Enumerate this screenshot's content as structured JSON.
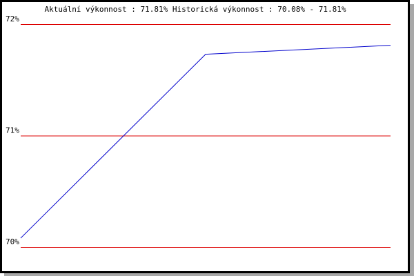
{
  "chart_data": {
    "type": "line",
    "title": "Aktuální výkonnost : 71.81%  Historická výkonnost : 70.08% - 71.81%",
    "xlabel": "",
    "ylabel": "",
    "ylim": [
      70,
      72
    ],
    "yticks": [
      70,
      71,
      72
    ],
    "ytick_labels": [
      "70%",
      "71%",
      "72%"
    ],
    "grid": true,
    "x": [
      0,
      1,
      2
    ],
    "series": [
      {
        "values": [
          70.08,
          71.73,
          71.81
        ]
      }
    ],
    "colors": {
      "line": "#0000cc",
      "grid": "#dd0000",
      "frame": "#000000",
      "shadow": "#a8a8a8"
    }
  }
}
